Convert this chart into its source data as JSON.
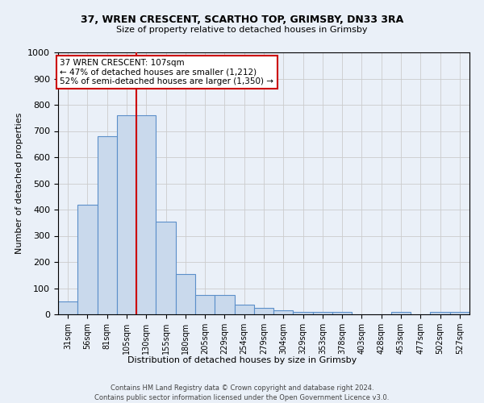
{
  "title1": "37, WREN CRESCENT, SCARTHO TOP, GRIMSBY, DN33 3RA",
  "title2": "Size of property relative to detached houses in Grimsby",
  "xlabel": "Distribution of detached houses by size in Grimsby",
  "ylabel": "Number of detached properties",
  "footnote1": "Contains HM Land Registry data © Crown copyright and database right 2024.",
  "footnote2": "Contains public sector information licensed under the Open Government Licence v3.0.",
  "bar_labels": [
    "31sqm",
    "56sqm",
    "81sqm",
    "105sqm",
    "130sqm",
    "155sqm",
    "180sqm",
    "205sqm",
    "229sqm",
    "254sqm",
    "279sqm",
    "304sqm",
    "329sqm",
    "353sqm",
    "378sqm",
    "403sqm",
    "428sqm",
    "453sqm",
    "477sqm",
    "502sqm",
    "527sqm"
  ],
  "bar_values": [
    50,
    420,
    680,
    760,
    760,
    355,
    155,
    75,
    75,
    38,
    25,
    15,
    10,
    10,
    10,
    0,
    0,
    8,
    0,
    8,
    8
  ],
  "bar_color": "#c9d9ec",
  "bar_edge_color": "#5b8fc9",
  "grid_color": "#cccccc",
  "bg_color": "#eaf0f8",
  "vline_x": 3.5,
  "vline_color": "#cc0000",
  "annotation_title": "37 WREN CRESCENT: 107sqm",
  "annotation_line1": "← 47% of detached houses are smaller (1,212)",
  "annotation_line2": "52% of semi-detached houses are larger (1,350) →",
  "annotation_box_color": "#ffffff",
  "annotation_border_color": "#cc0000",
  "ylim": [
    0,
    1000
  ],
  "yticks": [
    0,
    100,
    200,
    300,
    400,
    500,
    600,
    700,
    800,
    900,
    1000
  ]
}
